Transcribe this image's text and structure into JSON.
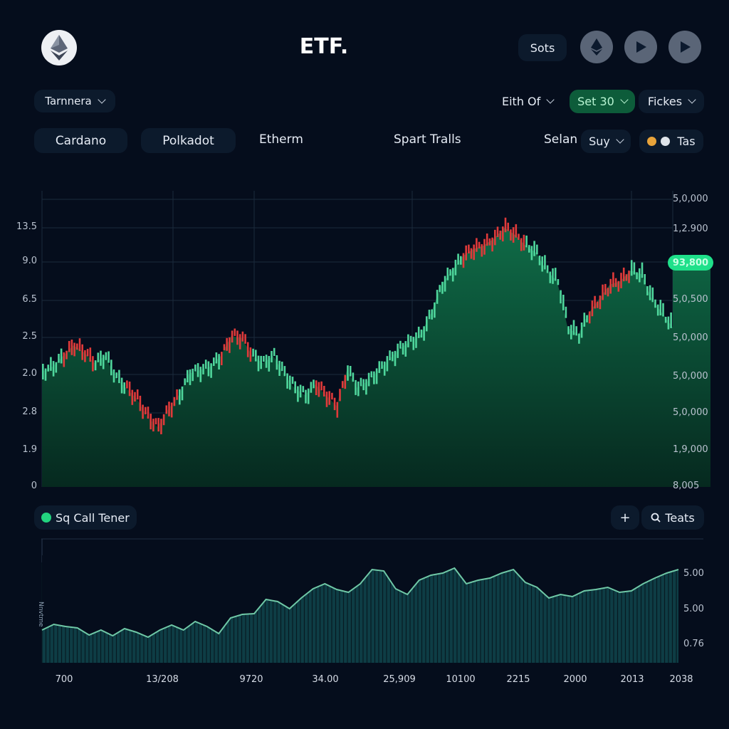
{
  "header": {
    "title": "ETF.",
    "logo_icon": "ethereum-logo-icon",
    "sots_label": "Sots",
    "icon_buttons": [
      "ethereum-icon",
      "play-icon",
      "play-icon"
    ]
  },
  "filters": {
    "left_dropdown": "Tarnnera",
    "eith_of": "Eith Of",
    "set_dropdown": "Set 30",
    "fickes_dropdown": "Fickes"
  },
  "tabs": {
    "items": [
      "Cardano",
      "Polkadot",
      "Etherm",
      "Spart Tralls"
    ],
    "selan_label": "Selan",
    "suy_dropdown": "Suy",
    "tas_label": "Tas"
  },
  "colors": {
    "background": "#050d1c",
    "up": "#4fd69c",
    "down": "#e03a3a",
    "area": "#0b5a3c",
    "accent": "#1fe08a",
    "volume": "#0e3d45",
    "volume_line": "#6fc8a6"
  },
  "lower_panel": {
    "title": "Sq Call Tener",
    "plus_label": "+",
    "search_label": "Teats",
    "vertical_label": "Nnvtme"
  },
  "chart_data": [
    {
      "type": "area",
      "title": "ETF price (candlestick over area)",
      "y_left_ticks": [
        "13.5",
        "9.0",
        "6.5",
        "2.5",
        "2.0",
        "2.8",
        "1.9",
        "0"
      ],
      "y_right_ticks": [
        "5,0,000",
        "1,2.900",
        "5,0,500",
        "5,0,000",
        "5,0,000",
        "5,0,000",
        "1,9,000",
        "8,005"
      ],
      "current_price_label": "93,800",
      "x": [
        0,
        1,
        2,
        3,
        4,
        5,
        6,
        7,
        8,
        9,
        10,
        11,
        12,
        13,
        14,
        15,
        16,
        17,
        18,
        19,
        20,
        21,
        22,
        23,
        24,
        25,
        26,
        27,
        28,
        29,
        30,
        31,
        32,
        33,
        34,
        35,
        36,
        37,
        38,
        39,
        40,
        41,
        42,
        43,
        44,
        45,
        46,
        47,
        48,
        49,
        50,
        51,
        52,
        53,
        54,
        55,
        56,
        57,
        58,
        59,
        60
      ],
      "values": [
        522,
        515,
        500,
        485,
        495,
        510,
        500,
        530,
        545,
        560,
        585,
        600,
        575,
        555,
        525,
        520,
        515,
        500,
        472,
        475,
        500,
        510,
        500,
        525,
        545,
        555,
        540,
        555,
        570,
        520,
        545,
        535,
        520,
        505,
        490,
        480,
        470,
        440,
        400,
        380,
        360,
        350,
        345,
        335,
        320,
        330,
        345,
        355,
        380,
        395,
        460,
        470,
        440,
        420,
        400,
        395,
        380,
        385,
        420,
        440,
        460
      ],
      "down_segments": [
        [
          2,
          4
        ],
        [
          8,
          12
        ],
        [
          17,
          19
        ],
        [
          26,
          28
        ],
        [
          40,
          45
        ],
        [
          52,
          55
        ]
      ],
      "grid": true,
      "ylim_pixels": [
        270,
        685
      ]
    },
    {
      "type": "area",
      "title": "Sq Call Tener (volume)",
      "y_right_ticks": [
        "5.00",
        "5.00",
        "0.76"
      ],
      "x_ticks": [
        "700",
        "13/208",
        "9720",
        "34.00",
        "25,909",
        "10100",
        "2215",
        "2000",
        "2013",
        "2038"
      ],
      "values": [
        885,
        877,
        880,
        882,
        892,
        885,
        893,
        883,
        888,
        895,
        885,
        878,
        885,
        873,
        880,
        890,
        868,
        863,
        862,
        842,
        845,
        855,
        840,
        827,
        820,
        828,
        832,
        820,
        800,
        802,
        827,
        835,
        815,
        808,
        805,
        798,
        820,
        815,
        812,
        805,
        800,
        818,
        825,
        840,
        835,
        838,
        830,
        828,
        825,
        832,
        830,
        820,
        812,
        805,
        800
      ],
      "grid": false
    }
  ]
}
